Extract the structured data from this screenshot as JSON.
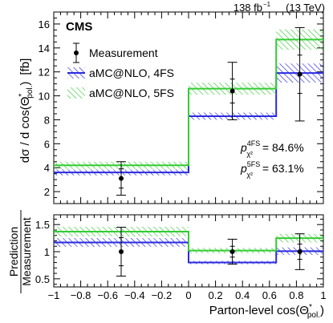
{
  "header": {
    "experiment": "CMS",
    "luminosity": "138 fb",
    "lumi_exp": "−1",
    "energy": "(13 TeV)"
  },
  "chart_data": [
    {
      "type": "line",
      "panel": "main",
      "ylabel_main": "dσ / d cos(Θ",
      "ylabel_sup": "*",
      "ylabel_sub": "pol.",
      "ylabel_close": ")",
      "ylabel_unit": "[fb]",
      "bins": [
        [
          -1,
          0
        ],
        [
          0,
          0.65
        ],
        [
          0.65,
          1
        ]
      ],
      "xlim": [
        -1,
        1
      ],
      "ylim": [
        1,
        17
      ],
      "yticks": [
        "2",
        "4",
        "6",
        "8",
        "10",
        "12",
        "14",
        "16"
      ],
      "legend": [
        "Measurement",
        "aMC@NLO, 4FS",
        "aMC@NLO, 5FS"
      ],
      "measurement": {
        "x": [
          -0.5,
          0.325,
          0.825
        ],
        "y": [
          3.1,
          10.4,
          11.8
        ],
        "err_total": [
          1.4,
          2.4,
          3.9
        ],
        "err_inner": [
          0.8,
          1.0,
          1.6
        ]
      },
      "series": [
        {
          "name": "aMC@NLO, 4FS",
          "color": "#2a2ae0",
          "values": [
            3.6,
            8.3,
            11.9
          ],
          "unc": [
            0.25,
            0.3,
            0.8
          ]
        },
        {
          "name": "aMC@NLO, 5FS",
          "color": "#33cc33",
          "values": [
            4.2,
            10.6,
            14.7
          ],
          "unc": [
            0.3,
            0.5,
            0.85
          ]
        }
      ],
      "annotations": [
        {
          "symbol": "p",
          "sup": "4FS",
          "sub": "χ²",
          "text": " = 84.6%"
        },
        {
          "symbol": "p",
          "sup": "5FS",
          "sub": "χ²",
          "text": " = 63.1%"
        }
      ]
    },
    {
      "type": "line",
      "panel": "ratio",
      "ylabel_top": "Prediction",
      "ylabel_bottom": "Measurement",
      "xlabel": "Parton-level cos(Θ",
      "xlabel_sup": "*",
      "xlabel_sub": "pol.",
      "xlabel_close": ")",
      "xlim": [
        -1,
        1
      ],
      "ylim": [
        0.35,
        1.68
      ],
      "xticks": [
        "−1",
        "−0.8",
        "−0.6",
        "−0.4",
        "−0.2",
        "0",
        "0.2",
        "0.4",
        "0.6",
        "0.8",
        "1"
      ],
      "yticks": [
        "0.5",
        "1",
        "1.5"
      ],
      "measurement": {
        "x": [
          -0.5,
          0.325,
          0.825
        ],
        "y": [
          1.0,
          1.0,
          1.0
        ],
        "err_total": [
          0.45,
          0.23,
          0.33
        ],
        "err_inner": [
          0.26,
          0.1,
          0.14
        ]
      },
      "series": [
        {
          "name": "aMC@NLO, 4FS",
          "color": "#2a2ae0",
          "values": [
            1.17,
            0.8,
            1.01
          ],
          "unc": [
            0.08,
            0.03,
            0.07
          ]
        },
        {
          "name": "aMC@NLO, 5FS",
          "color": "#33cc33",
          "values": [
            1.37,
            1.02,
            1.25
          ],
          "unc": [
            0.09,
            0.05,
            0.08
          ]
        }
      ]
    }
  ]
}
